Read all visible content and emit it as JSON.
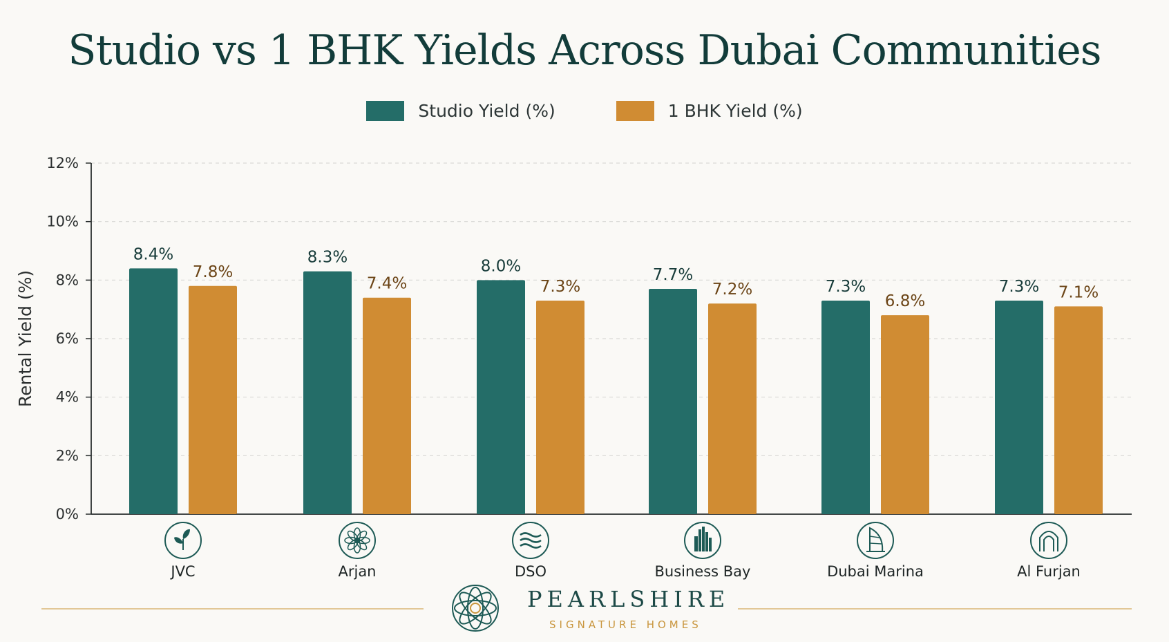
{
  "chart_data": {
    "type": "bar",
    "title": "Studio vs 1 BHK Yields Across Dubai Communities",
    "xlabel": "",
    "ylabel": "Rental Yield (%)",
    "ylim": [
      0,
      12
    ],
    "yticks": [
      "0%",
      "2%",
      "4%",
      "6%",
      "8%",
      "10%",
      "12%"
    ],
    "grid": true,
    "legend_position": "top-center",
    "categories": [
      "JVC",
      "Arjan",
      "DSO",
      "Business Bay",
      "Dubai Marina",
      "Al Furjan"
    ],
    "category_icons": [
      "leaf-icon",
      "flower-icon",
      "waves-icon",
      "towers-icon",
      "sail-tower-icon",
      "arch-icon"
    ],
    "series": [
      {
        "name": "Studio Yield (%)",
        "color": "#246d68",
        "label_color": "#183c3a",
        "values": [
          8.4,
          8.3,
          8.0,
          7.7,
          7.3,
          7.3
        ],
        "labels": [
          "8.4%",
          "8.3%",
          "8.0%",
          "7.7%",
          "7.3%",
          "7.3%"
        ]
      },
      {
        "name": "1 BHK Yield (%)",
        "color": "#d08c33",
        "label_color": "#6b4416",
        "values": [
          7.8,
          7.4,
          7.3,
          7.2,
          6.8,
          7.1
        ],
        "labels": [
          "7.8%",
          "7.4%",
          "7.3%",
          "7.2%",
          "6.8%",
          "7.1%"
        ]
      }
    ]
  },
  "brand": {
    "name": "PEARLSHIRE",
    "tagline": "SIGNATURE HOMES"
  }
}
